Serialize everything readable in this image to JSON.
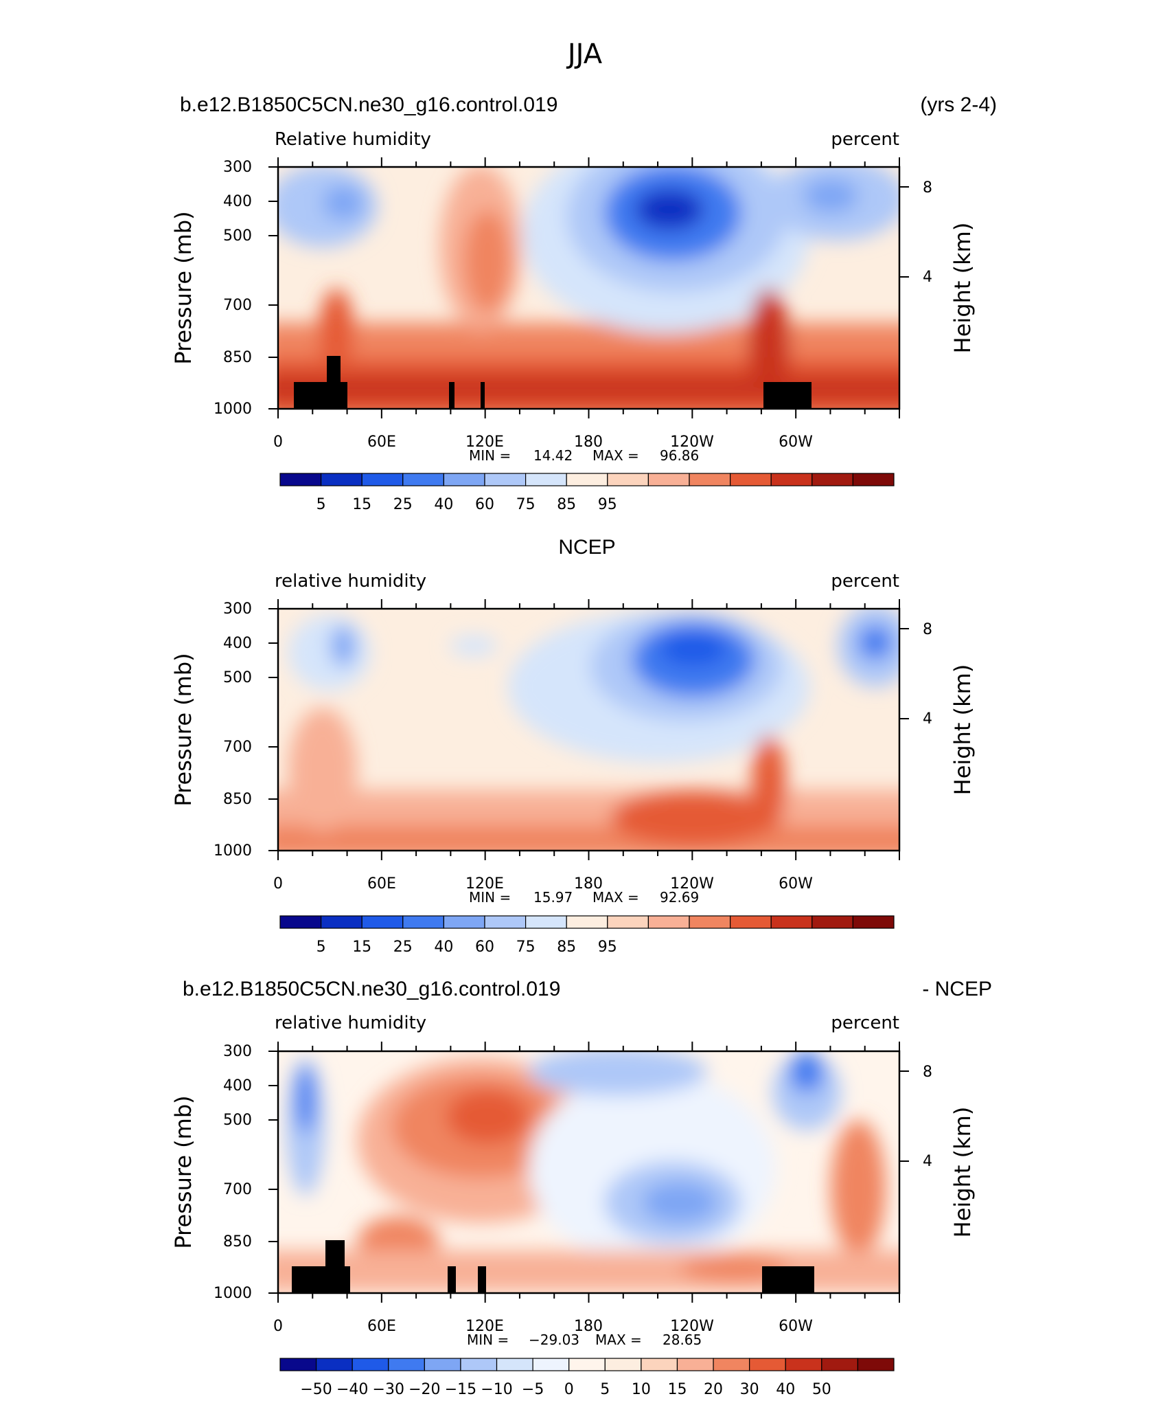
{
  "figure_title": "JJA",
  "colors": {
    "rh": [
      "#08088c",
      "#0a2fc2",
      "#1f5ae8",
      "#3f7af0",
      "#7ea6f4",
      "#aec8f8",
      "#d5e5fb",
      "#fdeee0",
      "#fcd4bd",
      "#f8b096",
      "#f08560",
      "#e55a35",
      "#c9321c",
      "#a11a10",
      "#7e0a08"
    ],
    "diff": [
      "#08088c",
      "#0a2fc2",
      "#1f5ae8",
      "#3f7af0",
      "#7ea6f4",
      "#aec8f8",
      "#d5e5fb",
      "#eef4fe",
      "#fff5ec",
      "#fdeee0",
      "#fcd4bd",
      "#f8b096",
      "#f08560",
      "#e55a35",
      "#c9321c",
      "#a11a10",
      "#7e0a08"
    ],
    "terrain": "#000000"
  },
  "chart_data": [
    {
      "type": "heatmap",
      "left_title": "b.e12.B1850C5CN.ne30_g16.control.019",
      "right_title": "(yrs 2-4)",
      "variable": "Relative humidity",
      "units": "percent",
      "ylabel": "Pressure (mb)",
      "ylabel_right": "Height (km)",
      "y_ticks": [
        "300",
        "400",
        "500",
        "700",
        "850",
        "1000"
      ],
      "y_ticks_right": [
        "8",
        "4"
      ],
      "x_ticks": [
        "0",
        "60E",
        "120E",
        "180",
        "120W",
        "60W"
      ],
      "stats": {
        "min_label": "MIN =",
        "min": "14.42",
        "max_label": "MAX =",
        "max": "96.86"
      },
      "colorbar_labels": [
        "5",
        "15",
        "25",
        "40",
        "60",
        "75",
        "85",
        "95"
      ]
    },
    {
      "type": "heatmap",
      "center_title": "NCEP",
      "variable": "relative humidity",
      "units": "percent",
      "ylabel": "Pressure (mb)",
      "ylabel_right": "Height (km)",
      "y_ticks": [
        "300",
        "400",
        "500",
        "700",
        "850",
        "1000"
      ],
      "y_ticks_right": [
        "8",
        "4"
      ],
      "x_ticks": [
        "0",
        "60E",
        "120E",
        "180",
        "120W",
        "60W"
      ],
      "stats": {
        "min_label": "MIN =",
        "min": "15.97",
        "max_label": "MAX =",
        "max": "92.69"
      },
      "colorbar_labels": [
        "5",
        "15",
        "25",
        "40",
        "60",
        "75",
        "85",
        "95"
      ]
    },
    {
      "type": "heatmap",
      "left_title": "b.e12.B1850C5CN.ne30_g16.control.019",
      "right_title": "- NCEP",
      "variable": "relative humidity",
      "units": "percent",
      "ylabel": "Pressure (mb)",
      "ylabel_right": "Height (km)",
      "y_ticks": [
        "300",
        "400",
        "500",
        "700",
        "850",
        "1000"
      ],
      "y_ticks_right": [
        "8",
        "4"
      ],
      "x_ticks": [
        "0",
        "60E",
        "120E",
        "180",
        "120W",
        "60W"
      ],
      "stats": {
        "min_label": "MIN =",
        "min": "−29.03",
        "max_label": "MAX =",
        "max": "28.65"
      },
      "colorbar_labels": [
        "−50",
        "−40",
        "−30",
        "−20",
        "−15",
        "−10",
        "−5",
        "0",
        "5",
        "10",
        "15",
        "20",
        "30",
        "40",
        "50"
      ]
    }
  ]
}
